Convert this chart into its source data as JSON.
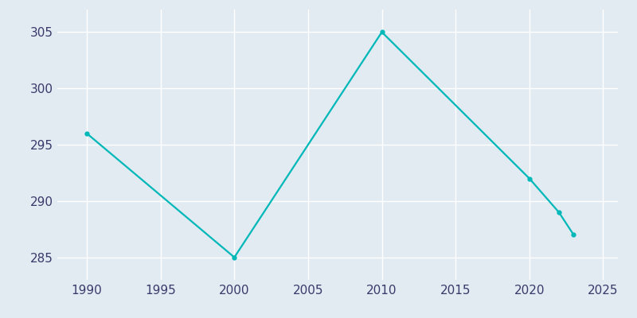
{
  "years": [
    1990,
    2000,
    2010,
    2020,
    2022,
    2023
  ],
  "population": [
    296,
    285,
    305,
    292,
    289,
    287
  ],
  "line_color": "#00B8B8",
  "marker_style": "o",
  "marker_size": 3.5,
  "background_color": "#E2EAF2",
  "grid_color": "#FFFFFF",
  "xlim": [
    1988,
    2026
  ],
  "ylim": [
    283,
    307
  ],
  "yticks": [
    285,
    290,
    295,
    300,
    305
  ],
  "xticks": [
    1990,
    1995,
    2000,
    2005,
    2010,
    2015,
    2020,
    2025
  ],
  "tick_color": "#3A3A6A",
  "tick_fontsize": 11,
  "linewidth": 1.6
}
